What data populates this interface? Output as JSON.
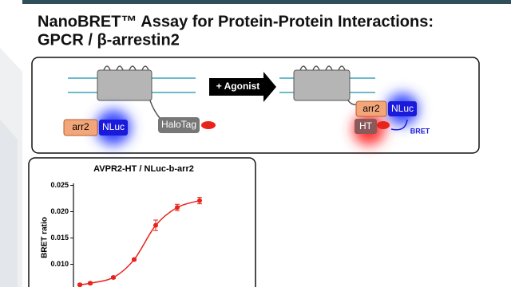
{
  "header": {
    "title": [
      "NanoBRET™ Assay for Protein-Protein Interactions:",
      "GPCR / β-arrestin2"
    ]
  },
  "diagram": {
    "arrow": "+ Agonist",
    "left": {
      "arrestin": "arr2",
      "luciferase": "NLuc",
      "tag": "HaloTag"
    },
    "right": {
      "arrestin": "arr2",
      "luciferase": "NLuc",
      "tag": "HT",
      "signal": "BRET"
    }
  },
  "chart_data": {
    "type": "line",
    "title": "AVPR2-HT / NLuc-b-arr2",
    "y_label": "BRET ratio",
    "categories": [
      null,
      null,
      null,
      null,
      null,
      null,
      null
    ],
    "values": [
      0.0061,
      0.0064,
      0.0075,
      0.0109,
      0.0174,
      0.0208,
      0.0221
    ],
    "errors": [
      0.0002,
      0.0002,
      0.0002,
      0.0002,
      0.001,
      0.0006,
      0.0006
    ],
    "color": "#e8231c",
    "ylim": [
      0,
      0.025
    ],
    "yticks": [
      {
        "value": 0.01,
        "label": "0.010"
      },
      0.015,
      {
        "value": 0.02,
        "label": "0.020"
      },
      0.025
    ]
  }
}
